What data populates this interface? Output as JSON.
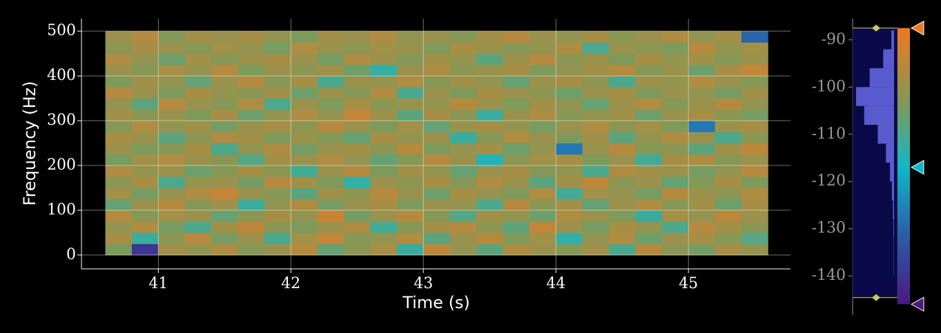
{
  "chart_data": {
    "type": "heatmap",
    "xlabel": "Time (s)",
    "ylabel": "Frequency (Hz)",
    "x_edges": [
      40.6,
      40.8,
      41.0,
      41.2,
      41.4,
      41.6,
      41.8,
      42.0,
      42.2,
      42.4,
      42.6,
      42.8,
      43.0,
      43.2,
      43.4,
      43.6,
      43.8,
      44.0,
      44.2,
      44.4,
      44.6,
      44.8,
      45.0,
      45.2,
      45.4,
      45.6
    ],
    "y_edges": [
      0,
      25,
      50,
      75,
      100,
      125,
      150,
      175,
      200,
      225,
      250,
      275,
      300,
      325,
      350,
      375,
      400,
      425,
      450,
      475,
      500
    ],
    "values": [
      [
        -104,
        -140,
        -99,
        -101,
        -97,
        -103,
        -100,
        -96,
        -107,
        -102,
        -98,
        -112,
        -95,
        -101,
        -108,
        -97,
        -100,
        -103,
        -99,
        -110,
        -96,
        -102,
        -105,
        -98,
        -101
      ],
      [
        -98,
        -112,
        -102,
        -96,
        -105,
        -100,
        -110,
        -99,
        -94,
        -103,
        -101,
        -97,
        -108,
        -100,
        -96,
        -104,
        -99,
        -113,
        -101,
        -97,
        -106,
        -100,
        -98,
        -103,
        -109
      ],
      [
        -101,
        -97,
        -105,
        -110,
        -99,
        -95,
        -102,
        -104,
        -100,
        -97,
        -111,
        -103,
        -99,
        -96,
        -102,
        -108,
        -94,
        -100,
        -105,
        -98,
        -101,
        -110,
        -96,
        -99,
        -102
      ],
      [
        -96,
        -103,
        -99,
        -100,
        -107,
        -102,
        -98,
        -101,
        -93,
        -105,
        -100,
        -96,
        -103,
        -109,
        -99,
        -101,
        -106,
        -97,
        -100,
        -104,
        -112,
        -98,
        -101,
        -95,
        -100
      ],
      [
        -107,
        -100,
        -96,
        -103,
        -99,
        -112,
        -101,
        -97,
        -105,
        -100,
        -98,
        -104,
        -100,
        -101,
        -110,
        -96,
        -102,
        -99,
        -107,
        -100,
        -97,
        -103,
        -99,
        -106,
        -98
      ],
      [
        -99,
        -105,
        -101,
        -97,
        -94,
        -100,
        -103,
        -108,
        -99,
        -102,
        -96,
        -100,
        -106,
        -98,
        -101,
        -104,
        -97,
        -111,
        -99,
        -101,
        -105,
        -96,
        -100,
        -102,
        -97
      ],
      [
        -102,
        -98,
        -110,
        -101,
        -100,
        -105,
        -96,
        -99,
        -104,
        -113,
        -100,
        -102,
        -98,
        -103,
        -97,
        -100,
        -108,
        -99,
        -95,
        -102,
        -100,
        -107,
        -103,
        -98,
        -104
      ],
      [
        -97,
        -101,
        -100,
        -106,
        -103,
        -98,
        -102,
        -111,
        -100,
        -96,
        -104,
        -99,
        -101,
        -107,
        -100,
        -98,
        -103,
        -101,
        -110,
        -97,
        -99,
        -100,
        -105,
        -101,
        -96
      ],
      [
        -105,
        -99,
        -97,
        -100,
        -102,
        -109,
        -99,
        -100,
        -97,
        -101,
        -107,
        -103,
        -96,
        -100,
        -115,
        -102,
        -99,
        -98,
        -104,
        -100,
        -111,
        -98,
        -97,
        -103,
        -100
      ],
      [
        -100,
        -104,
        -103,
        -98,
        -110,
        -101,
        -97,
        -105,
        -100,
        -99,
        -102,
        -96,
        -104,
        -101,
        -99,
        -106,
        -101,
        -127,
        -100,
        -96,
        -103,
        -102,
        -108,
        -99,
        -95
      ],
      [
        -98,
        -100,
        -108,
        -102,
        -97,
        -99,
        -104,
        -100,
        -103,
        -107,
        -98,
        -101,
        -100,
        -112,
        -103,
        -97,
        -100,
        -104,
        -99,
        -108,
        -101,
        -97,
        -100,
        -110,
        -102
      ],
      [
        -103,
        -97,
        -101,
        -99,
        -105,
        -100,
        -98,
        -102,
        -96,
        -100,
        -104,
        -99,
        -107,
        -100,
        -98,
        -101,
        -105,
        -100,
        -97,
        -102,
        -99,
        -104,
        -127,
        -100,
        -98
      ],
      [
        -99,
        -102,
        -100,
        -104,
        -98,
        -106,
        -101,
        -97,
        -101,
        -94,
        -100,
        -108,
        -98,
        -102,
        -112,
        -100,
        -97,
        -103,
        -101,
        -99,
        -106,
        -100,
        -98,
        -102,
        -105
      ],
      [
        -101,
        -108,
        -96,
        -100,
        -103,
        -97,
        -110,
        -100,
        -104,
        -98,
        -102,
        -100,
        -101,
        -96,
        -100,
        -104,
        -99,
        -101,
        -107,
        -100,
        -97,
        -103,
        -100,
        -96,
        -101
      ],
      [
        -96,
        -100,
        -104,
        -98,
        -101,
        -102,
        -99,
        -106,
        -100,
        -103,
        -97,
        -110,
        -100,
        -104,
        -98,
        -100,
        -102,
        -106,
        -100,
        -98,
        -104,
        -100,
        -101,
        -105,
        -99
      ],
      [
        -104,
        -99,
        -101,
        -107,
        -100,
        -96,
        -103,
        -98,
        -110,
        -100,
        -101,
        -97,
        -103,
        -99,
        -101,
        -107,
        -100,
        -98,
        -102,
        -110,
        -99,
        -101,
        -97,
        -100,
        -103
      ],
      [
        -100,
        -103,
        -98,
        -101,
        -96,
        -104,
        -100,
        -102,
        -99,
        -106,
        -113,
        -100,
        -97,
        -102,
        -100,
        -98,
        -104,
        -101,
        -99,
        -96,
        -103,
        -100,
        -106,
        -98,
        -94
      ],
      [
        -97,
        -101,
        -106,
        -99,
        -103,
        -100,
        -98,
        -100,
        -105,
        -97,
        -100,
        -103,
        -99,
        -101,
        -108,
        -100,
        -96,
        -102,
        -100,
        -104,
        -98,
        -101,
        -99,
        -103,
        -100
      ],
      [
        -102,
        -98,
        -100,
        -103,
        -99,
        -101,
        -105,
        -97,
        -100,
        -102,
        -99,
        -100,
        -104,
        -98,
        -100,
        -103,
        -101,
        -97,
        -110,
        -100,
        -102,
        -104,
        -96,
        -101,
        -99
      ],
      [
        -100,
        -96,
        -103,
        -99,
        -100,
        -98,
        -101,
        -104,
        -99,
        -100,
        -97,
        -101,
        -100,
        -103,
        -99,
        -96,
        -100,
        -101,
        -98,
        -102,
        -100,
        -97,
        -101,
        -99,
        -130
      ]
    ],
    "xlim": [
      40.42,
      45.77
    ],
    "ylim": [
      -31,
      528
    ],
    "xticks": [
      41,
      42,
      43,
      44,
      45
    ],
    "yticks": [
      0,
      100,
      200,
      300,
      400,
      500
    ],
    "grid": true,
    "colorbar": {
      "ylim": [
        -148.3,
        -85.5
      ],
      "yticks": [
        -90,
        -100,
        -110,
        -120,
        -130,
        -140
      ],
      "levels": [
        -144.6,
        -87.5
      ],
      "colormap": [
        {
          "value": -146,
          "color": "#4a1a80"
        },
        {
          "value": -131,
          "color": "#2b5fa8"
        },
        {
          "value": -117,
          "color": "#10b8c8"
        },
        {
          "value": -104,
          "color": "#7e9a5a"
        },
        {
          "value": -87.5,
          "color": "#f07820"
        }
      ],
      "histogram": {
        "bins": [
          -140,
          -136,
          -132,
          -128,
          -124,
          -120,
          -116,
          -112,
          -108,
          -104,
          -100,
          -96,
          -92,
          -88
        ],
        "counts": [
          1,
          1,
          2,
          4,
          8,
          15,
          30,
          60,
          110,
          140,
          90,
          40,
          10
        ],
        "color": "#6a6ae8"
      }
    }
  }
}
